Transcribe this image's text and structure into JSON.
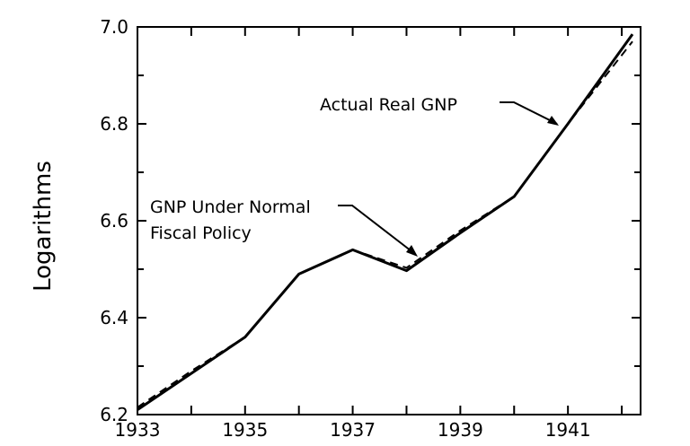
{
  "chart_data": {
    "type": "line",
    "title": "",
    "xlabel": "",
    "ylabel": "Logarithms",
    "xlim": [
      1933,
      1942.35
    ],
    "ylim": [
      6.2,
      7.0
    ],
    "x_ticks": [
      1933,
      1935,
      1937,
      1939,
      1941
    ],
    "y_ticks": [
      "6.2",
      "6.4",
      "6.6",
      "6.8",
      "7.0"
    ],
    "grid": false,
    "series": [
      {
        "name": "Actual Real GNP",
        "style": "solid",
        "x": [
          1933,
          1934,
          1935,
          1936,
          1937,
          1938,
          1939,
          1940,
          1941,
          1942.2
        ],
        "y": [
          6.21,
          6.285,
          6.36,
          6.49,
          6.54,
          6.497,
          6.575,
          6.65,
          6.8,
          6.985
        ]
      },
      {
        "name": "GNP Under Normal Fiscal Policy",
        "style": "dashed",
        "x": [
          1933,
          1934,
          1935,
          1936,
          1937,
          1938,
          1939,
          1940,
          1941,
          1942.2
        ],
        "y": [
          6.215,
          6.29,
          6.36,
          6.49,
          6.54,
          6.503,
          6.58,
          6.65,
          6.8,
          6.97
        ]
      }
    ],
    "annotations": [
      {
        "text": "Actual Real GNP",
        "target_series": "Actual Real GNP"
      },
      {
        "lines": [
          "GNP Under Normal",
          "Fiscal Policy"
        ],
        "target_series": "GNP Under Normal Fiscal Policy"
      }
    ]
  }
}
